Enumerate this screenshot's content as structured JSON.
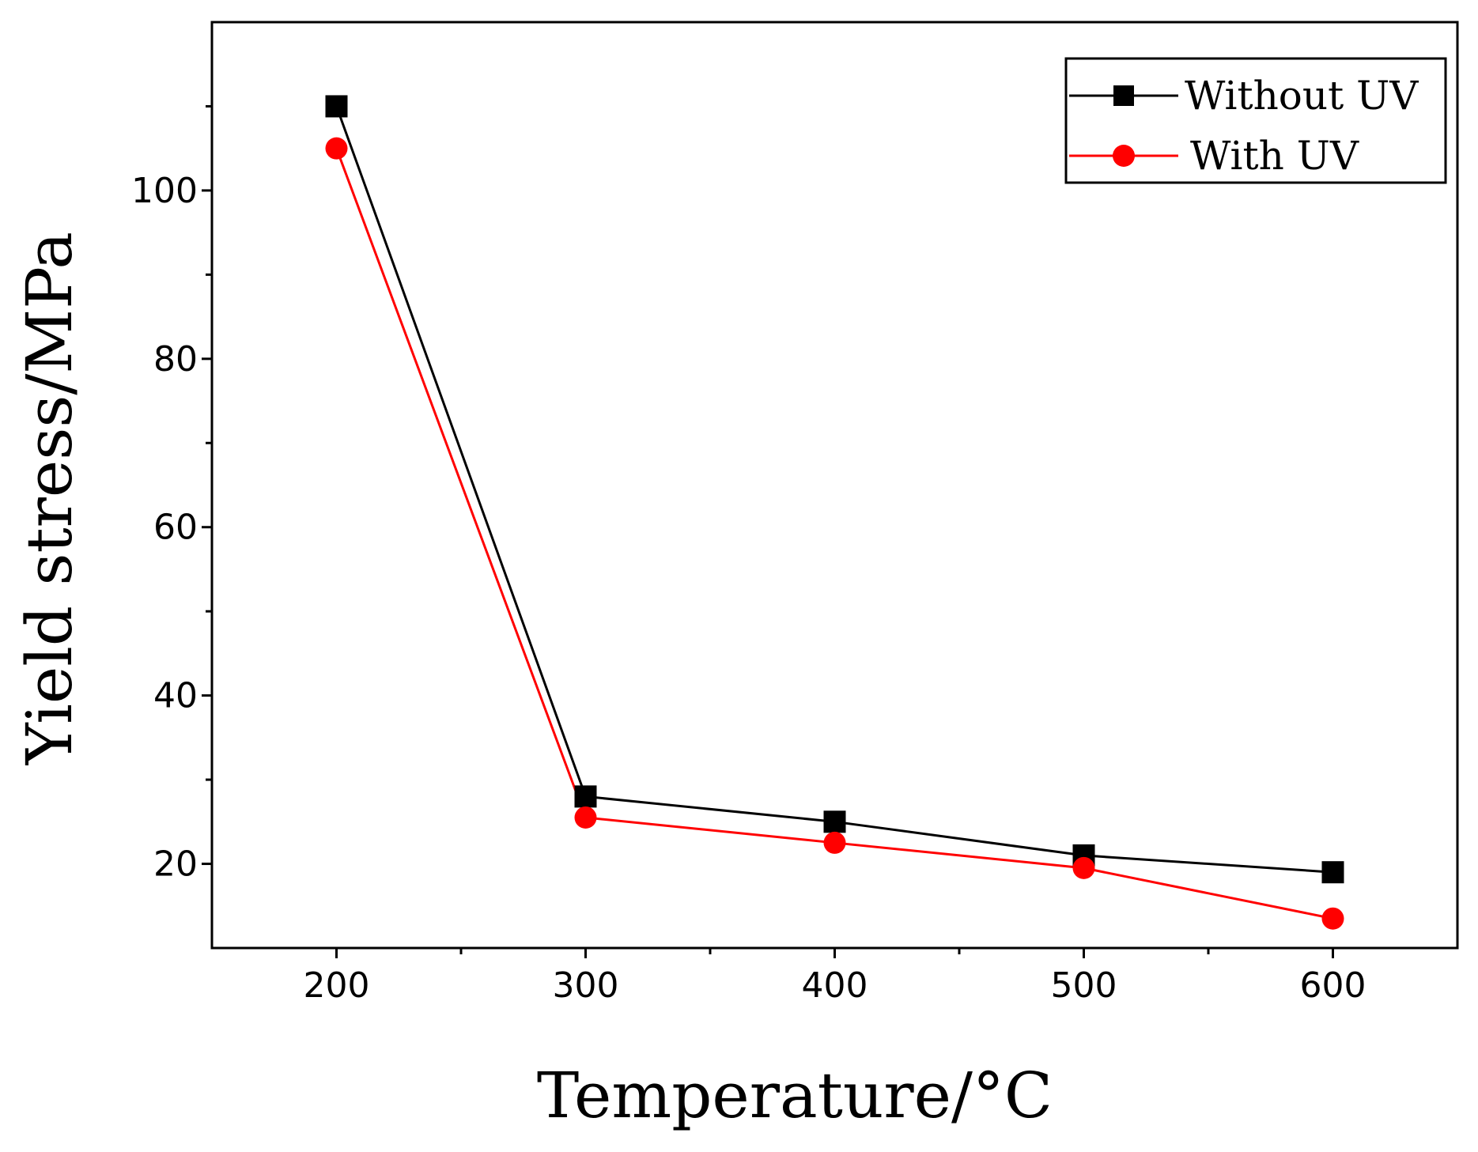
{
  "chart_data": {
    "type": "line",
    "title": "",
    "xlabel": "Temperature/°C",
    "ylabel": "Yield stress/MPa",
    "x": [
      200,
      300,
      400,
      500,
      600
    ],
    "xlim": [
      150,
      650
    ],
    "ylim": [
      10,
      120
    ],
    "xticks": [
      200,
      300,
      400,
      500,
      600
    ],
    "xtick_labels": [
      "200",
      "300",
      "400",
      "500",
      "600"
    ],
    "yticks": [
      20,
      40,
      60,
      80,
      100
    ],
    "ytick_labels": [
      "20",
      "40",
      "60",
      "80",
      "100"
    ],
    "grid": false,
    "legend_position": "top-right",
    "series": [
      {
        "name": "Without UV",
        "color": "#000000",
        "marker": "square",
        "values": [
          110,
          28,
          25,
          21,
          19
        ]
      },
      {
        "name": "With UV",
        "color": "#ff0000",
        "marker": "circle",
        "values": [
          105,
          25.5,
          22.5,
          19.5,
          13.5
        ]
      }
    ]
  }
}
